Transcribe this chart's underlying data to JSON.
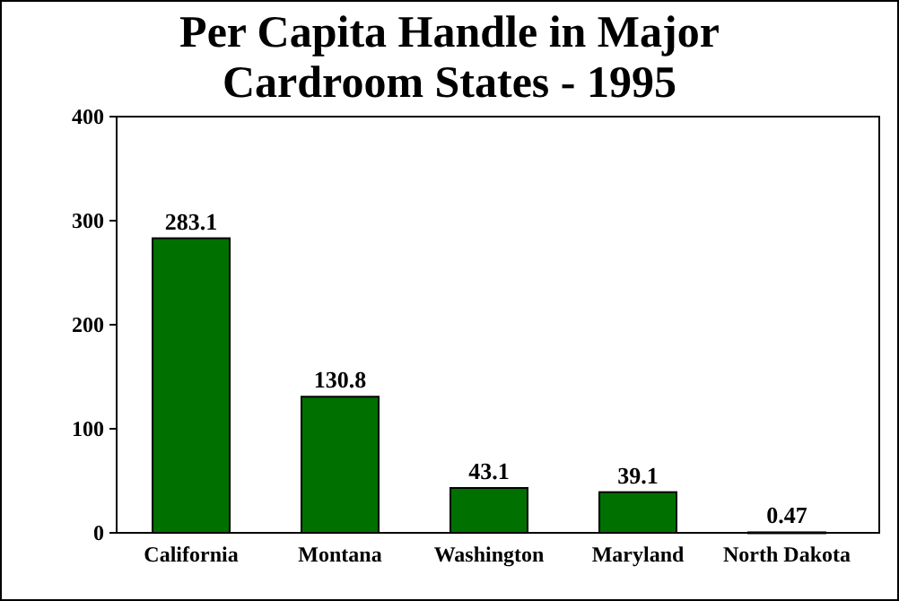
{
  "chart_data": {
    "type": "bar",
    "title": "Per Capita Handle in Major Cardroom States - 1995",
    "categories": [
      "California",
      "Montana",
      "Washington",
      "Maryland",
      "North Dakota"
    ],
    "values": [
      283.1,
      130.8,
      43.1,
      39.1,
      0.47
    ],
    "value_labels": [
      "283.1",
      "130.8",
      "43.1",
      "39.1",
      "0.47"
    ],
    "color": "#007000",
    "ylim": [
      0,
      400
    ],
    "yticks": [
      0,
      100,
      200,
      300,
      400
    ],
    "grid": false
  }
}
